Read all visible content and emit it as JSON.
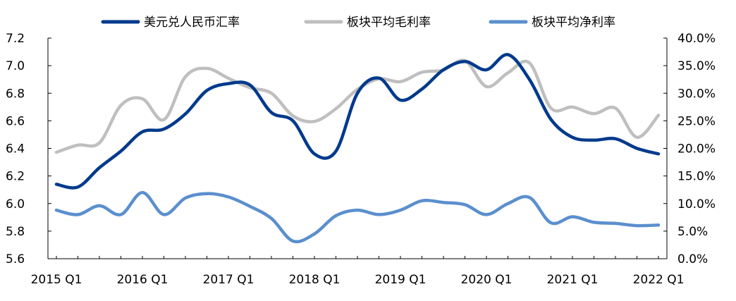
{
  "chart_data": {
    "type": "line",
    "title": "",
    "xlabel": "",
    "ylabel_left": "",
    "ylabel_right": "",
    "x_tick_labels": [
      "2015 Q1",
      "2016 Q1",
      "2017 Q1",
      "2018 Q1",
      "2019 Q1",
      "2020 Q1",
      "2021 Q1",
      "2022 Q1"
    ],
    "x": [
      "2015 Q1",
      "2015 Q2",
      "2015 Q3",
      "2015 Q4",
      "2016 Q1",
      "2016 Q2",
      "2016 Q3",
      "2016 Q4",
      "2017 Q1",
      "2017 Q2",
      "2017 Q3",
      "2017 Q4",
      "2018 Q1",
      "2018 Q2",
      "2018 Q3",
      "2018 Q4",
      "2019 Q1",
      "2019 Q2",
      "2019 Q3",
      "2019 Q4",
      "2020 Q1",
      "2020 Q2",
      "2020 Q3",
      "2020 Q4",
      "2021 Q1",
      "2021 Q2",
      "2021 Q3",
      "2021 Q4",
      "2022 Q1"
    ],
    "y_left_ticks": [
      "5.6",
      "5.8",
      "6.0",
      "6.2",
      "6.4",
      "6.6",
      "6.8",
      "7.0",
      "7.2"
    ],
    "y_left_range": [
      5.6,
      7.2
    ],
    "y_right_ticks": [
      "0.0%",
      "5.0%",
      "10.0%",
      "15.0%",
      "20.0%",
      "25.0%",
      "30.0%",
      "35.0%",
      "40.0%"
    ],
    "y_right_range": [
      0,
      40
    ],
    "legend_position": "top",
    "grid": false,
    "series": [
      {
        "name": "美元兑人民币汇率",
        "axis": "left",
        "color": "#003A8C",
        "values": [
          6.14,
          6.12,
          6.26,
          6.38,
          6.52,
          6.54,
          6.65,
          6.82,
          6.87,
          6.86,
          6.66,
          6.6,
          6.36,
          6.38,
          6.8,
          6.91,
          6.75,
          6.83,
          6.97,
          7.03,
          6.97,
          7.08,
          6.9,
          6.61,
          6.48,
          6.46,
          6.47,
          6.4,
          6.36
        ]
      },
      {
        "name": "板块平均毛利率",
        "axis": "right",
        "color": "#BFBFBF",
        "values": [
          19.3,
          20.6,
          21.0,
          27.8,
          29.0,
          25.2,
          33.0,
          34.5,
          32.7,
          31.0,
          30.0,
          25.9,
          24.9,
          27.2,
          30.7,
          32.6,
          32.1,
          33.8,
          34.2,
          35.9,
          31.2,
          33.7,
          35.5,
          27.3,
          27.5,
          26.3,
          27.3,
          22.0,
          26.0
        ]
      },
      {
        "name": "板块平均净利率",
        "axis": "right",
        "color": "#5B8FCE",
        "values": [
          8.8,
          8.0,
          9.6,
          8.0,
          12.0,
          8.0,
          11.0,
          11.8,
          11.2,
          9.5,
          7.3,
          3.2,
          4.5,
          7.8,
          8.8,
          8.0,
          8.8,
          10.5,
          10.2,
          9.8,
          8.0,
          10.0,
          11.1,
          6.5,
          7.6,
          6.6,
          6.4,
          6.0,
          6.1
        ]
      }
    ]
  }
}
